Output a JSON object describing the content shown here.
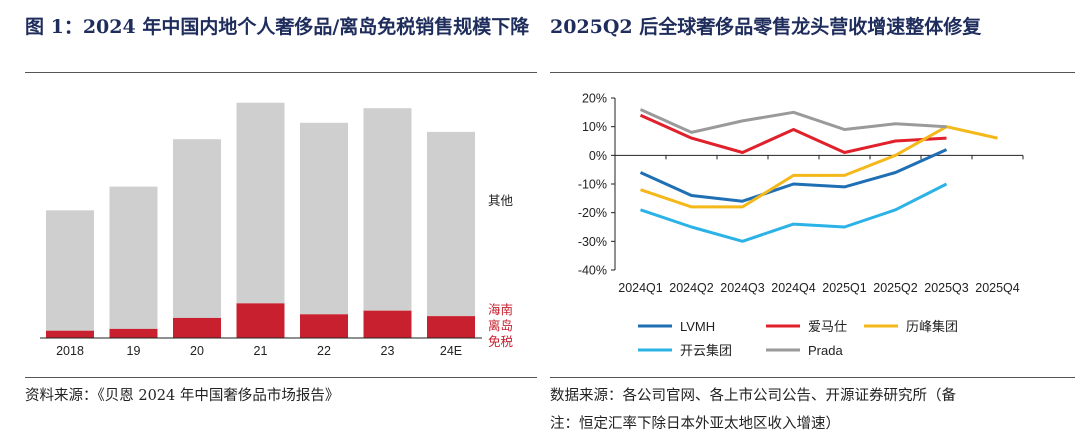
{
  "left": {
    "title": "图 1：2024 年中国内地个人奢侈品/离岛免税销售规模下降",
    "source": "资料来源：《贝恩 2024 年中国奢侈品市场报告》",
    "legend": [
      "其他",
      "海南",
      "离岛",
      "免税"
    ]
  },
  "right": {
    "title": "2025Q2 后全球奢侈品零售龙头营收增速整体修复",
    "source_line1": "数据来源：各公司官网、各上市公司公告、开源证券研究所（备",
    "source_line2": "注：恒定汇率下除日本外亚太地区收入增速）"
  },
  "colors": {
    "title": "#1f2d5c",
    "other": "#cfcfcf",
    "hainan": "#c8202f",
    "LVMH": "#1f6fb5",
    "Hermes": "#e0202a",
    "Richemont": "#f5b81a",
    "Kering": "#2bb2e6",
    "Prada": "#9a9a9a"
  },
  "chart_data": [
    {
      "type": "bar",
      "stacked": true,
      "categories": [
        "2018",
        "19",
        "20",
        "21",
        "22",
        "23",
        "24E"
      ],
      "series": [
        {
          "name": "海南离岛免税",
          "values": [
            4,
            5,
            11,
            19,
            13,
            15,
            12
          ]
        },
        {
          "name": "其他",
          "values": [
            66,
            78,
            98,
            110,
            105,
            111,
            101
          ]
        }
      ],
      "ylim": [
        0,
        125
      ],
      "grid": false,
      "legend": "right"
    },
    {
      "type": "line",
      "x": [
        "2024Q1",
        "2024Q2",
        "2024Q3",
        "2024Q4",
        "2025Q1",
        "2025Q2",
        "2025Q3",
        "2025Q4"
      ],
      "series": [
        {
          "name": "LVMH",
          "values": [
            -6,
            -14,
            -16,
            -10,
            -11,
            -6,
            2,
            null
          ]
        },
        {
          "name": "爱马仕",
          "values": [
            14,
            6,
            1,
            9,
            1,
            5,
            6,
            null
          ]
        },
        {
          "name": "历峰集团",
          "values": [
            -12,
            -18,
            -18,
            -7,
            -7,
            0,
            10,
            6
          ]
        },
        {
          "name": "开云集团",
          "values": [
            -19,
            -25,
            -30,
            -24,
            -25,
            -19,
            -10,
            null
          ]
        },
        {
          "name": "Prada",
          "values": [
            16,
            8,
            12,
            15,
            9,
            11,
            10,
            null
          ]
        }
      ],
      "ylim": [
        -40,
        20
      ],
      "yticks": [
        "-40%",
        "-30%",
        "-20%",
        "-10%",
        "0%",
        "10%",
        "20%"
      ],
      "grid": false,
      "legend": "bottom"
    }
  ]
}
